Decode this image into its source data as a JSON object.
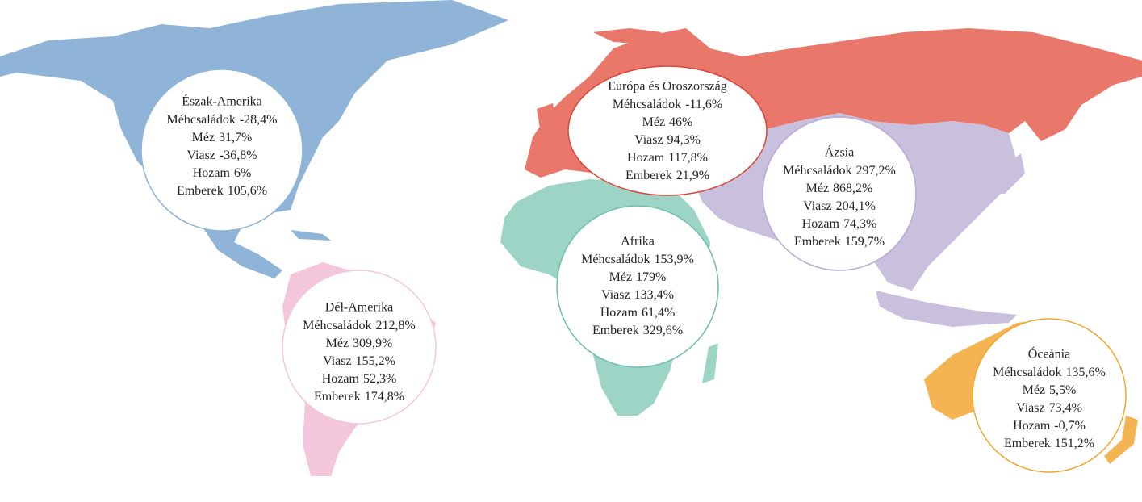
{
  "regions": [
    {
      "name": "Észak-Amerika",
      "stats": [
        {
          "label": "Méhcsaládok",
          "value": "-28,4%"
        },
        {
          "label": "Méz",
          "value": "31,7%"
        },
        {
          "label": "Viasz",
          "value": "-36,8%"
        },
        {
          "label": "Hozam",
          "value": "6%"
        },
        {
          "label": "Emberek",
          "value": "105,6%"
        }
      ]
    },
    {
      "name": "Dél-Amerika",
      "stats": [
        {
          "label": "Méhcsaládok",
          "value": "212,8%"
        },
        {
          "label": "Méz",
          "value": "309,9%"
        },
        {
          "label": "Viasz",
          "value": "155,2%"
        },
        {
          "label": "Hozam",
          "value": "52,3%"
        },
        {
          "label": "Emberek",
          "value": "174,8%"
        }
      ]
    },
    {
      "name": "Európa és Oroszország",
      "stats": [
        {
          "label": "Méhcsaládok",
          "value": "-11,6%"
        },
        {
          "label": "Méz",
          "value": "46%"
        },
        {
          "label": "Viasz",
          "value": "94,3%"
        },
        {
          "label": "Hozam",
          "value": "117,8%"
        },
        {
          "label": "Emberek",
          "value": "21,9%"
        }
      ]
    },
    {
      "name": "Ázsia",
      "stats": [
        {
          "label": "Méhcsaládok",
          "value": "297,2%"
        },
        {
          "label": "Méz",
          "value": "868,2%"
        },
        {
          "label": "Viasz",
          "value": "204,1%"
        },
        {
          "label": "Hozam",
          "value": "74,3%"
        },
        {
          "label": "Emberek",
          "value": "159,7%"
        }
      ]
    },
    {
      "name": "Afrika",
      "stats": [
        {
          "label": "Méhcsaládok",
          "value": "153,9%"
        },
        {
          "label": "Méz",
          "value": "179%"
        },
        {
          "label": "Viasz",
          "value": "133,4%"
        },
        {
          "label": "Hozam",
          "value": "61,4%"
        },
        {
          "label": "Emberek",
          "value": "329,6%"
        }
      ]
    },
    {
      "name": "Óceánia",
      "stats": [
        {
          "label": "Méhcsaládok",
          "value": "135,6%"
        },
        {
          "label": "Méz",
          "value": "5,5%"
        },
        {
          "label": "Viasz",
          "value": "73,4%"
        },
        {
          "label": "Hozam",
          "value": "-0,7%"
        },
        {
          "label": "Emberek",
          "value": "151,2%"
        }
      ]
    }
  ]
}
